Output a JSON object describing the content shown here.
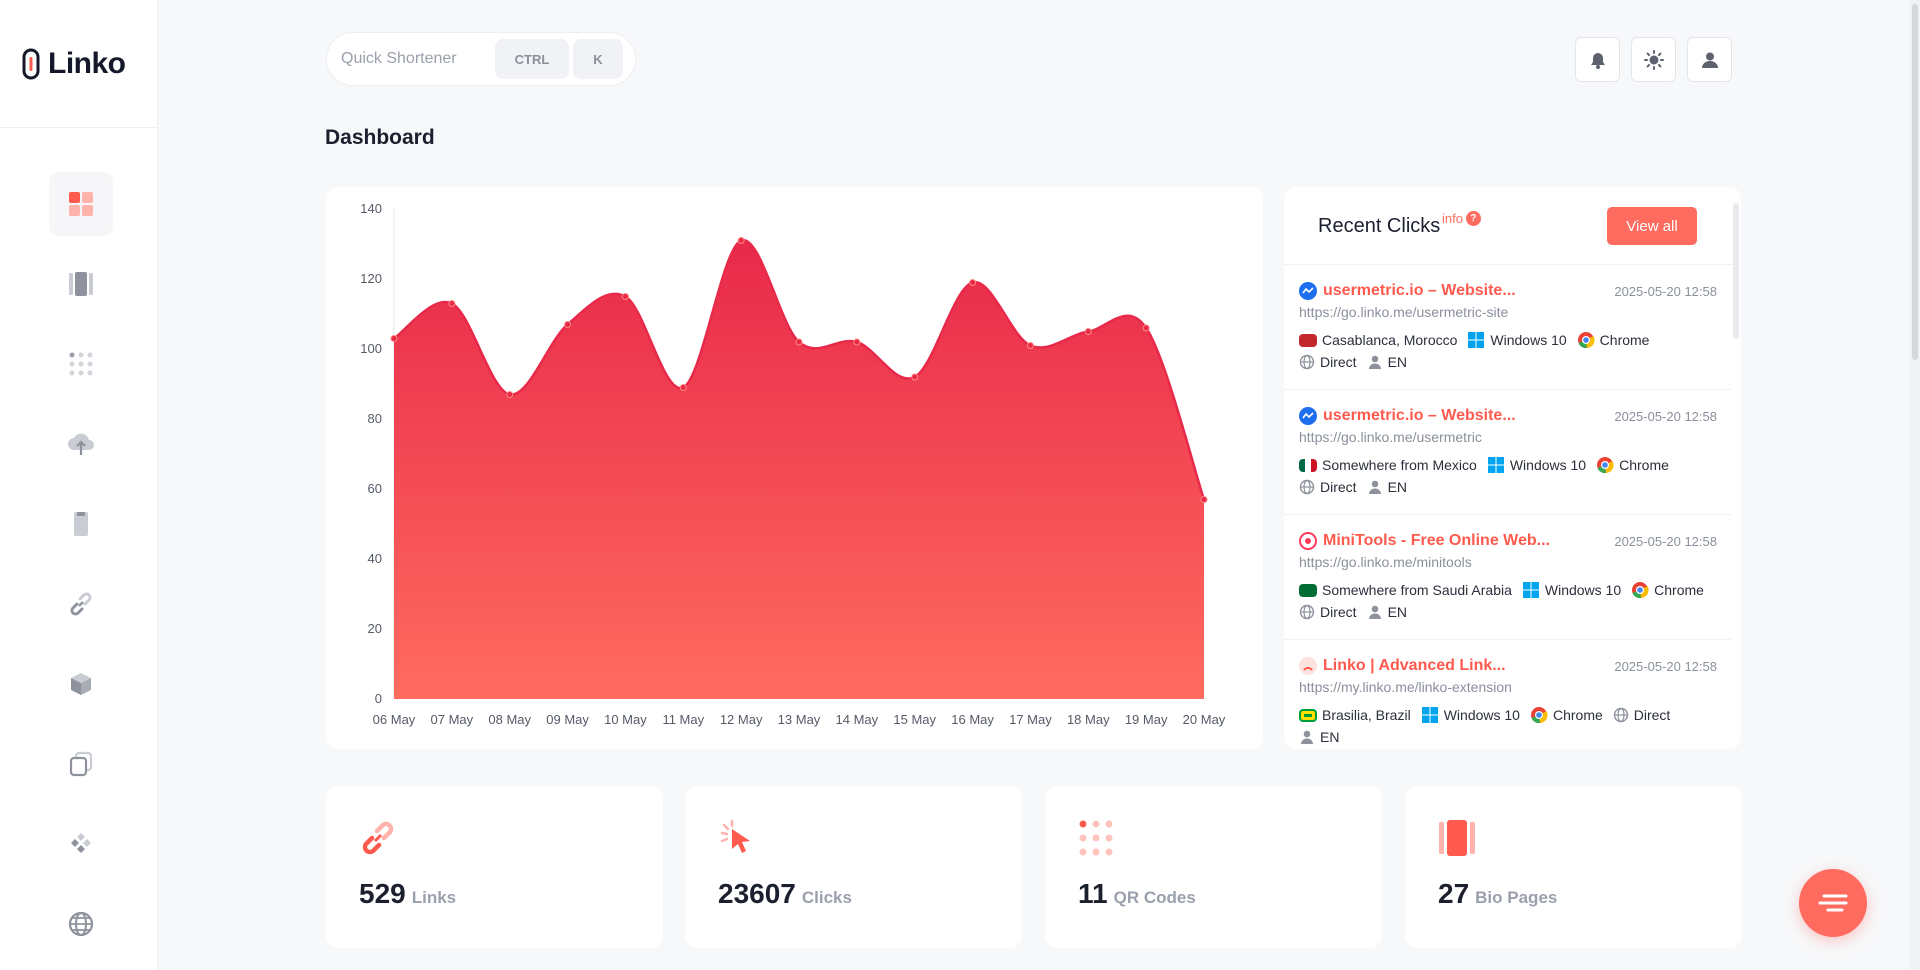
{
  "app": {
    "name": "Linko"
  },
  "header": {
    "quick_placeholder": "Quick Shortener",
    "kbd_ctrl": "CTRL",
    "kbd_k": "K"
  },
  "page": {
    "title": "Dashboard"
  },
  "chart_data": {
    "type": "area",
    "title": "",
    "categories": [
      "06 May",
      "07 May",
      "08 May",
      "09 May",
      "10 May",
      "11 May",
      "12 May",
      "13 May",
      "14 May",
      "15 May",
      "16 May",
      "17 May",
      "18 May",
      "19 May",
      "20 May"
    ],
    "values": [
      103,
      113,
      87,
      107,
      115,
      89,
      131,
      102,
      102,
      92,
      119,
      101,
      105,
      106,
      57
    ],
    "yticks": [
      0,
      20,
      40,
      60,
      80,
      100,
      120,
      140
    ],
    "ylim": [
      0,
      140
    ],
    "xlabel": "",
    "ylabel": "",
    "color_top": "#e8294a",
    "color_bottom": "#ff6b5f"
  },
  "recent_clicks": {
    "title": "Recent Clicks",
    "info": "info",
    "view_all": "View all",
    "items": [
      {
        "site": "usermetric.io – Website...",
        "date": "2025-05-20 12:58",
        "url": "https://go.linko.me/usermetric-site",
        "location": "Casablanca, Morocco",
        "os": "Windows 10",
        "browser": "Chrome",
        "referrer": "Direct",
        "lang": "EN"
      },
      {
        "site": "usermetric.io – Website...",
        "date": "2025-05-20 12:58",
        "url": "https://go.linko.me/usermetric",
        "location": "Somewhere from Mexico",
        "os": "Windows 10",
        "browser": "Chrome",
        "referrer": "Direct",
        "lang": "EN"
      },
      {
        "site": "MiniTools - Free Online Web...",
        "date": "2025-05-20 12:58",
        "url": "https://go.linko.me/minitools",
        "location": "Somewhere from Saudi Arabia",
        "os": "Windows 10",
        "browser": "Chrome",
        "referrer": "Direct",
        "lang": "EN"
      },
      {
        "site": "Linko | Advanced Link...",
        "date": "2025-05-20 12:58",
        "url": "https://my.linko.me/linko-extension",
        "location": "Brasilia, Brazil",
        "os": "Windows 10",
        "browser": "Chrome",
        "referrer": "Direct",
        "lang": "EN"
      }
    ]
  },
  "stats": [
    {
      "value": "529",
      "label": "Links"
    },
    {
      "value": "23607",
      "label": "Clicks"
    },
    {
      "value": "11",
      "label": "QR Codes"
    },
    {
      "value": "27",
      "label": "Bio Pages"
    }
  ],
  "colors": {
    "accent": "#ff6b5f",
    "accent_dark": "#e8294a"
  }
}
